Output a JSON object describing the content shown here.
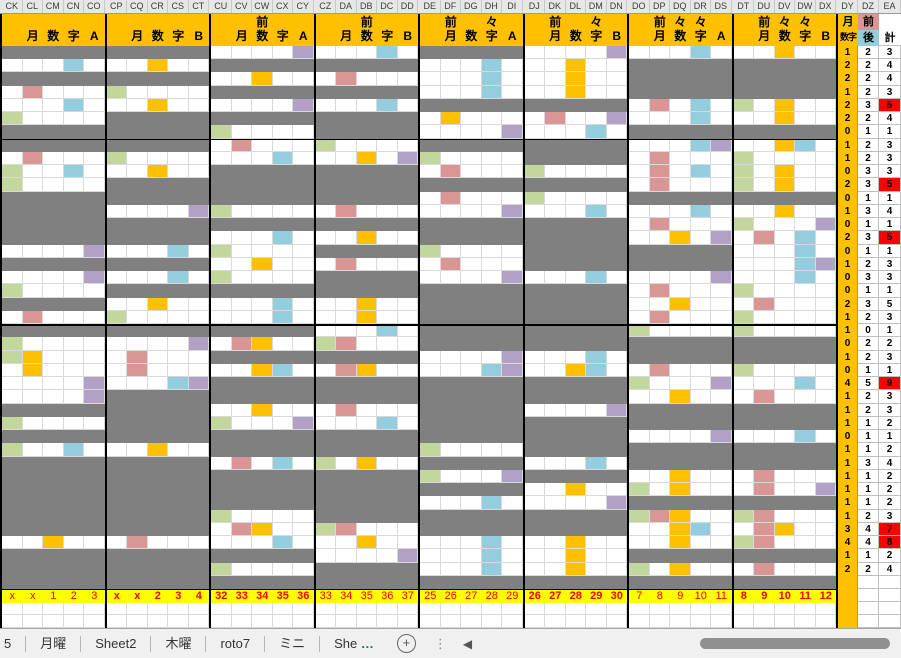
{
  "palette": {
    "gray_block": "#808080",
    "orange": "#ffc000",
    "cyan": "#93cdde",
    "pink": "#d99694",
    "green": "#c3d69b",
    "purple": "#b2a1c7",
    "marker_bg": "#ffff00",
    "marker_text": "#ff0000",
    "highlight_red": "#ff0000",
    "header_bg": "#ffc000"
  },
  "cell_codes": {
    ".": "white",
    "g": "gray-row",
    "Y": "orange",
    "C": "cyan",
    "P": "pink",
    "G": "green",
    "U": "purple"
  },
  "groups": [
    {
      "letters": [
        "CK",
        "CL",
        "CM",
        "CN",
        "CO"
      ],
      "header_line1": [],
      "header_line2": [
        {
          "ch": "月",
          "col": 2
        },
        {
          "ch": "数",
          "col": 3
        },
        {
          "ch": "字",
          "col": 4
        },
        {
          "ch": "A",
          "col": 5
        }
      ],
      "rows": [
        "g",
        "...C.",
        "g",
        ".P...",
        "...C.",
        "G....",
        "g",
        "g",
        ".P...",
        "G..C.",
        "G....",
        "g",
        "g",
        "g",
        "g",
        "....U",
        "g",
        "....U",
        "G....",
        "g",
        ".P...",
        "g",
        "G....",
        "GY...",
        ".Y...",
        "....U",
        "....U",
        "g",
        "G....",
        "g",
        "G..C.",
        "g",
        "g",
        "g",
        "g",
        "g",
        "g",
        "..Y..",
        "g",
        "g",
        "g"
      ],
      "markers": [
        "x",
        "x",
        "1",
        "2",
        "3"
      ],
      "markers_bold": false
    },
    {
      "letters": [
        "CP",
        "CQ",
        "CR",
        "CS",
        "CT"
      ],
      "header_line1": [],
      "header_line2": [
        {
          "ch": "月",
          "col": 2
        },
        {
          "ch": "数",
          "col": 3
        },
        {
          "ch": "字",
          "col": 4
        },
        {
          "ch": "B",
          "col": 5
        }
      ],
      "rows": [
        "g",
        "..Y..",
        "g",
        "G....",
        "..Y..",
        "g",
        "g",
        "g",
        "G....",
        "..Y..",
        "g",
        "g",
        "....U",
        "g",
        "g",
        "...C.",
        "g",
        "...C.",
        "g",
        "..Y..",
        "G....",
        "g",
        "....U",
        ".P...",
        ".P...",
        "...CU",
        "g",
        "g",
        "g",
        "g",
        "..Y..",
        "g",
        "g",
        "g",
        "g",
        "g",
        "g",
        ".P...",
        "g",
        "g",
        "g"
      ],
      "markers": [
        "x",
        "x",
        "2",
        "3",
        "4"
      ],
      "markers_bold": true
    },
    {
      "letters": [
        "CU",
        "CV",
        "CW",
        "CX",
        "CY"
      ],
      "header_line1": [
        {
          "ch": "前",
          "col": 3
        }
      ],
      "header_line2": [
        {
          "ch": "月",
          "col": 2
        },
        {
          "ch": "数",
          "col": 3
        },
        {
          "ch": "字",
          "col": 4
        },
        {
          "ch": "A",
          "col": 5
        }
      ],
      "rows": [
        "....U",
        "g",
        "..Y..",
        "g",
        "....U",
        "g",
        "G....",
        ".P...",
        "...C.",
        "g",
        "g",
        "g",
        "G....",
        "g",
        "...C.",
        "G....",
        "..Y..",
        "G....",
        "g",
        "...C.",
        "...C.",
        "g",
        ".PY..",
        "g",
        "..YC.",
        "g",
        "g",
        "..Y..",
        "G...U",
        "g",
        "g",
        ".P.C.",
        "g",
        "g",
        "g",
        "G....",
        ".PY..",
        "...C.",
        "g",
        "G....",
        "g"
      ],
      "markers": [
        "32",
        "33",
        "34",
        "35",
        "36"
      ],
      "markers_bold": true
    },
    {
      "letters": [
        "CZ",
        "DA",
        "DB",
        "DC",
        "DD"
      ],
      "header_line1": [
        {
          "ch": "前",
          "col": 3
        }
      ],
      "header_line2": [
        {
          "ch": "月",
          "col": 2
        },
        {
          "ch": "数",
          "col": 3
        },
        {
          "ch": "字",
          "col": 4
        },
        {
          "ch": "B",
          "col": 5
        }
      ],
      "rows": [
        "...C.",
        "g",
        ".P...",
        "g",
        "...C.",
        "g",
        "g",
        "G....",
        "..Y.U",
        "g",
        "g",
        "g",
        ".P...",
        "g",
        "..Y..",
        "g",
        ".P...",
        "g",
        "g",
        "..Y..",
        "..Y..",
        "...C.",
        "GP...",
        "g",
        ".PY..",
        "g",
        "g",
        ".P...",
        "...C.",
        "g",
        "g",
        "G.Y..",
        "g",
        "g",
        "g",
        "g",
        "GP...",
        "..Y..",
        "....U",
        "g",
        "g"
      ],
      "markers": [
        "33",
        "34",
        "35",
        "36",
        "37"
      ],
      "markers_bold": false
    },
    {
      "letters": [
        "DE",
        "DF",
        "DG",
        "DH",
        "DI"
      ],
      "header_line1": [
        {
          "ch": "前",
          "col": 2
        },
        {
          "ch": "々",
          "col": 4
        }
      ],
      "header_line2": [
        {
          "ch": "月",
          "col": 2
        },
        {
          "ch": "数",
          "col": 3
        },
        {
          "ch": "字",
          "col": 4
        },
        {
          "ch": "A",
          "col": 5
        }
      ],
      "rows": [
        "g",
        "...C.",
        "...C.",
        "...C.",
        "g",
        ".Y...",
        "....U",
        "g",
        "G....",
        ".P...",
        "g",
        ".P...",
        "....U",
        "g",
        "g",
        "G....",
        ".P...",
        "....U",
        "g",
        "g",
        "g",
        "g",
        "g",
        "....U",
        "...CU",
        "g",
        "g",
        "g",
        "g",
        "g",
        "G....",
        "g",
        "G...U",
        "g",
        "...C.",
        "g",
        "g",
        "...C.",
        "...C.",
        "...C.",
        "g"
      ],
      "markers": [
        "25",
        "26",
        "27",
        "28",
        "29"
      ],
      "markers_bold": false
    },
    {
      "letters": [
        "DJ",
        "DK",
        "DL",
        "DM",
        "DN"
      ],
      "header_line1": [
        {
          "ch": "前",
          "col": 2
        },
        {
          "ch": "々",
          "col": 4
        }
      ],
      "header_line2": [
        {
          "ch": "月",
          "col": 2
        },
        {
          "ch": "数",
          "col": 3
        },
        {
          "ch": "字",
          "col": 4
        },
        {
          "ch": "B",
          "col": 5
        }
      ],
      "rows": [
        "....U",
        "..Y..",
        "..Y..",
        "..Y..",
        "g",
        ".P..U",
        "...C.",
        "g",
        "g",
        "G....",
        "g",
        "G....",
        "...C.",
        "g",
        "g",
        "g",
        "g",
        "...C.",
        "g",
        "g",
        "g",
        "g",
        "g",
        "...C.",
        "..YC.",
        "g",
        "g",
        "....U",
        "g",
        "g",
        "g",
        "...C.",
        "g",
        "..Y..",
        "....U",
        "g",
        "g",
        "..Y..",
        "..Y..",
        "..Y..",
        "g"
      ],
      "markers": [
        "26",
        "27",
        "28",
        "29",
        "30"
      ],
      "markers_bold": true
    },
    {
      "letters": [
        "DO",
        "DP",
        "DQ",
        "DR",
        "DS"
      ],
      "header_line1": [
        {
          "ch": "前",
          "col": 2
        },
        {
          "ch": "々",
          "col": 3
        },
        {
          "ch": "々",
          "col": 4
        }
      ],
      "header_line2": [
        {
          "ch": "月",
          "col": 2
        },
        {
          "ch": "数",
          "col": 3
        },
        {
          "ch": "字",
          "col": 4
        },
        {
          "ch": "A",
          "col": 5
        }
      ],
      "rows": [
        "...C.",
        "g",
        "g",
        "g",
        ".P.C.",
        "...C.",
        "g",
        "...CU",
        ".P...",
        ".P.C.",
        ".P...",
        "g",
        "...C.",
        ".P...",
        "..Y.U",
        "g",
        "g",
        "....U",
        ".P...",
        "..Y..",
        ".P...",
        "G....",
        "g",
        "g",
        ".P...",
        "G...U",
        "..Y..",
        "g",
        "g",
        "....U",
        "g",
        "g",
        "..Y..",
        "G.Y..",
        "g",
        "GPY..",
        "..YC.",
        "..Y..",
        "g",
        "G.Y..",
        "g"
      ],
      "markers": [
        "7",
        "8",
        "9",
        "10",
        "11"
      ],
      "markers_bold": false
    },
    {
      "letters": [
        "DT",
        "DU",
        "DV",
        "DW",
        "DX"
      ],
      "header_line1": [
        {
          "ch": "前",
          "col": 2
        },
        {
          "ch": "々",
          "col": 3
        },
        {
          "ch": "々",
          "col": 4
        }
      ],
      "header_line2": [
        {
          "ch": "月",
          "col": 2
        },
        {
          "ch": "数",
          "col": 3
        },
        {
          "ch": "字",
          "col": 4
        },
        {
          "ch": "B",
          "col": 5
        }
      ],
      "rows": [
        "..Y..",
        "g",
        "g",
        "g",
        "G.Y..",
        "..Y..",
        "g",
        "..YC.",
        "G....",
        "G.Y..",
        "G.Y..",
        "g",
        "..Y..",
        "G...U",
        ".P.C.",
        "...C.",
        "...CU",
        "...C.",
        "G....",
        ".P...",
        "G....",
        "G....",
        "g",
        "g",
        "G....",
        "...C.",
        ".P...",
        "g",
        "g",
        "...C.",
        "g",
        "g",
        ".P...",
        ".P..U",
        "g",
        "GP...",
        ".PY..",
        "GP...",
        "g",
        ".P...",
        "g"
      ],
      "markers": [
        "8",
        "9",
        "10",
        "11",
        "12"
      ],
      "markers_bold": true
    }
  ],
  "right_panel": {
    "letters": [
      "DY",
      "DZ",
      "EA"
    ],
    "dy_header": {
      "line1": "月",
      "line2": "数字"
    },
    "dz_header": {
      "top": "前",
      "bottom": "後",
      "top_bg": "#d99694",
      "bottom_bg": "#93cdde"
    },
    "ea_header": "計",
    "rows": [
      {
        "dy": "1",
        "dz": "2",
        "ea": "3",
        "red": false
      },
      {
        "dy": "2",
        "dz": "2",
        "ea": "4",
        "red": false
      },
      {
        "dy": "2",
        "dz": "2",
        "ea": "4",
        "red": false
      },
      {
        "dy": "1",
        "dz": "2",
        "ea": "3",
        "red": false
      },
      {
        "dy": "2",
        "dz": "3",
        "ea": "5",
        "red": true
      },
      {
        "dy": "2",
        "dz": "2",
        "ea": "4",
        "red": false
      },
      {
        "dy": "0",
        "dz": "1",
        "ea": "1",
        "red": false
      },
      {
        "dy": "1",
        "dz": "2",
        "ea": "3",
        "red": false
      },
      {
        "dy": "1",
        "dz": "2",
        "ea": "3",
        "red": false
      },
      {
        "dy": "0",
        "dz": "3",
        "ea": "3",
        "red": false
      },
      {
        "dy": "2",
        "dz": "3",
        "ea": "5",
        "red": true
      },
      {
        "dy": "0",
        "dz": "1",
        "ea": "1",
        "red": false
      },
      {
        "dy": "1",
        "dz": "3",
        "ea": "4",
        "red": false
      },
      {
        "dy": "0",
        "dz": "1",
        "ea": "1",
        "red": false
      },
      {
        "dy": "2",
        "dz": "3",
        "ea": "5",
        "red": true
      },
      {
        "dy": "0",
        "dz": "1",
        "ea": "1",
        "red": false
      },
      {
        "dy": "1",
        "dz": "2",
        "ea": "3",
        "red": false
      },
      {
        "dy": "0",
        "dz": "3",
        "ea": "3",
        "red": false
      },
      {
        "dy": "0",
        "dz": "1",
        "ea": "1",
        "red": false
      },
      {
        "dy": "2",
        "dz": "3",
        "ea": "5",
        "red": false
      },
      {
        "dy": "1",
        "dz": "2",
        "ea": "3",
        "red": false
      },
      {
        "dy": "1",
        "dz": "0",
        "ea": "1",
        "red": false
      },
      {
        "dy": "0",
        "dz": "2",
        "ea": "2",
        "red": false
      },
      {
        "dy": "1",
        "dz": "2",
        "ea": "3",
        "red": false
      },
      {
        "dy": "0",
        "dz": "1",
        "ea": "1",
        "red": false
      },
      {
        "dy": "4",
        "dz": "5",
        "ea": "9",
        "red": true
      },
      {
        "dy": "1",
        "dz": "2",
        "ea": "3",
        "red": false
      },
      {
        "dy": "1",
        "dz": "2",
        "ea": "3",
        "red": false
      },
      {
        "dy": "1",
        "dz": "1",
        "ea": "2",
        "red": false
      },
      {
        "dy": "0",
        "dz": "1",
        "ea": "1",
        "red": false
      },
      {
        "dy": "1",
        "dz": "1",
        "ea": "2",
        "red": false
      },
      {
        "dy": "1",
        "dz": "3",
        "ea": "4",
        "red": false
      },
      {
        "dy": "1",
        "dz": "1",
        "ea": "2",
        "red": false
      },
      {
        "dy": "1",
        "dz": "1",
        "ea": "2",
        "red": false
      },
      {
        "dy": "1",
        "dz": "1",
        "ea": "2",
        "red": false
      },
      {
        "dy": "1",
        "dz": "2",
        "ea": "3",
        "red": false
      },
      {
        "dy": "3",
        "dz": "4",
        "ea": "7",
        "red": true
      },
      {
        "dy": "4",
        "dz": "4",
        "ea": "8",
        "red": true
      },
      {
        "dy": "1",
        "dz": "1",
        "ea": "2",
        "red": false
      },
      {
        "dy": "2",
        "dz": "2",
        "ea": "4",
        "red": false
      }
    ]
  },
  "bottom_bar": {
    "partial_tab": "5",
    "tabs": [
      "月曜",
      "Sheet2",
      "木曜",
      "roto7",
      "ミニ"
    ],
    "truncated_tab": {
      "label": "She",
      "ellipsis": "…"
    },
    "new_sheet_glyph": "+",
    "menu_glyph": "⋮",
    "scroll_left_glyph": "◀"
  }
}
